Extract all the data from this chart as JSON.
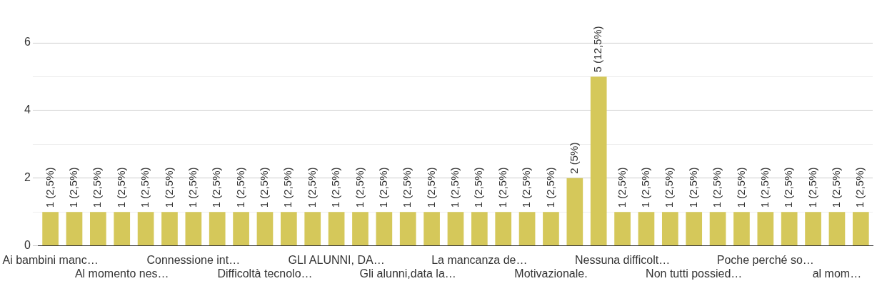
{
  "chart_data": {
    "type": "bar",
    "categories": [
      "Ai bambini manc…",
      null,
      null,
      "Al momento nes…",
      null,
      null,
      "Connessione int…",
      null,
      null,
      "Difficoltà tecnolo…",
      null,
      null,
      "GLI ALUNNI, DA…",
      null,
      null,
      "Gli alunni,data la…",
      null,
      null,
      "La mancanza de…",
      null,
      null,
      "Motivazionale.",
      null,
      null,
      "Nessuna difficolt…",
      null,
      null,
      "Non tutti possied…",
      null,
      null,
      "Poche perché so…",
      null,
      null,
      "al mom…",
      null
    ],
    "values": [
      1,
      1,
      1,
      1,
      1,
      1,
      1,
      1,
      1,
      1,
      1,
      1,
      1,
      1,
      1,
      1,
      1,
      1,
      1,
      1,
      1,
      1,
      2,
      5,
      1,
      1,
      1,
      1,
      1,
      1,
      1,
      1,
      1,
      1,
      1
    ],
    "value_labels": [
      "1 (2,5%)",
      "1 (2,5%)",
      "1 (2,5%)",
      "1 (2,5%)",
      "1 (2,5%)",
      "1 (2,5%)",
      "1 (2,5%)",
      "1 (2,5%)",
      "1 (2,5%)",
      "1 (2,5%)",
      "1 (2,5%)",
      "1 (2,5%)",
      "1 (2,5%)",
      "1 (2,5%)",
      "1 (2,5%)",
      "1 (2,5%)",
      "1 (2,5%)",
      "1 (2,5%)",
      "1 (2,5%)",
      "1 (2,5%)",
      "1 (2,5%)",
      "1 (2,5%)",
      "2 (5%)",
      "5 (12,5%)",
      "1 (2,5%)",
      "1 (2,5%)",
      "1 (2,5%)",
      "1 (2,5%)",
      "1 (2,5%)",
      "1 (2,5%)",
      "1 (2,5%)",
      "1 (2,5%)",
      "1 (2,5%)",
      "1 (2,5%)",
      "1 (2,5%)"
    ],
    "color": "#d5c85a",
    "ylim": [
      0,
      6
    ],
    "yticks": [
      0,
      {
        "value": 1,
        "label": null
      },
      2,
      {
        "value": 3,
        "label": null
      },
      4,
      {
        "value": 5,
        "label": null
      },
      6
    ],
    "grid": true,
    "legend": false
  }
}
